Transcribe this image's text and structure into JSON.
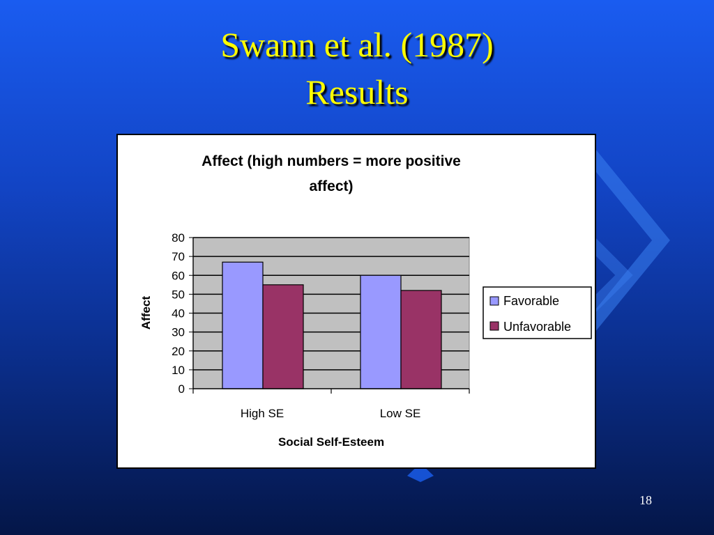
{
  "slide": {
    "title_line1": "Swann et al. (1987)",
    "title_line2": "Results",
    "page_number": "18"
  },
  "colors": {
    "plot_background": "#c0c0c0",
    "favorable": "#9999ff",
    "unfavorable": "#993366"
  },
  "chart_data": {
    "type": "bar",
    "title": "Affect (high numbers = more positive affect)",
    "title_lines": [
      "Affect (high numbers = more positive",
      "affect)"
    ],
    "xlabel": "Social Self-Esteem",
    "ylabel": "Affect",
    "categories": [
      "High SE",
      "Low SE"
    ],
    "series": [
      {
        "name": "Favorable",
        "color": "#9999ff",
        "values": [
          67,
          60
        ]
      },
      {
        "name": "Unfavorable",
        "color": "#993366",
        "values": [
          55,
          52
        ]
      }
    ],
    "ylim": [
      0,
      80
    ],
    "yticks": [
      0,
      10,
      20,
      30,
      40,
      50,
      60,
      70,
      80
    ],
    "grid": true,
    "legend": "right"
  }
}
